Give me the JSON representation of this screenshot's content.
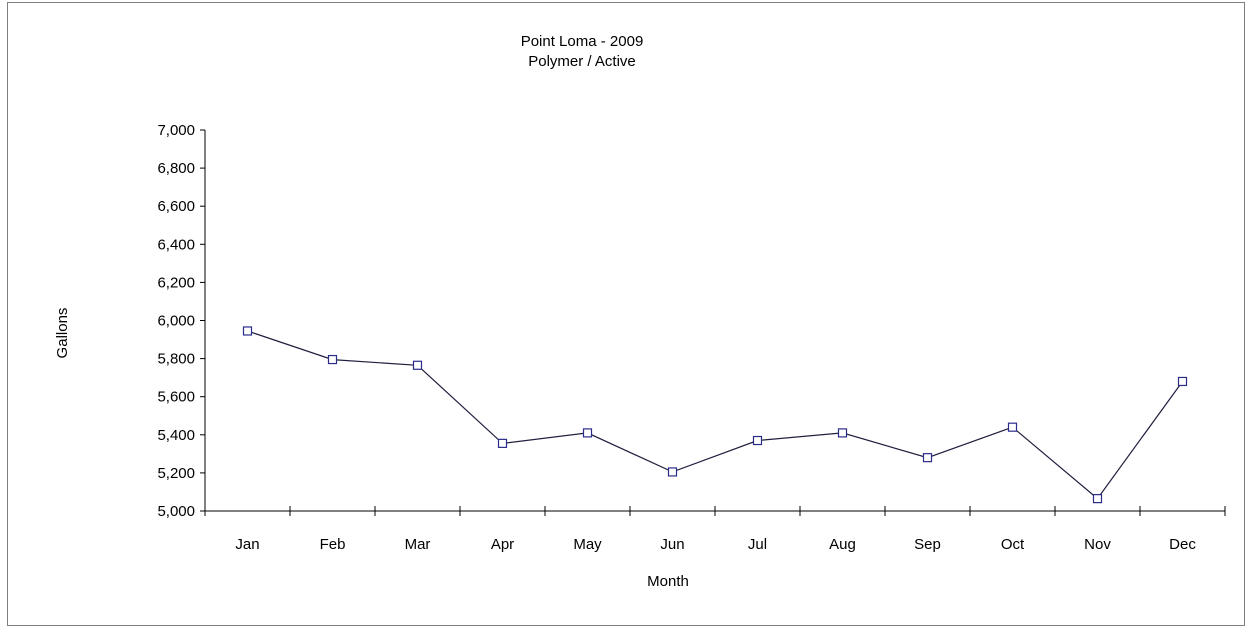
{
  "chart_data": {
    "type": "line",
    "title": "Point Loma - 2009",
    "subtitle": "Polymer / Active",
    "xlabel": "Month",
    "ylabel": "Gallons",
    "categories": [
      "Jan",
      "Feb",
      "Mar",
      "Apr",
      "May",
      "Jun",
      "Jul",
      "Aug",
      "Sep",
      "Oct",
      "Nov",
      "Dec"
    ],
    "values": [
      5945,
      5795,
      5765,
      5355,
      5410,
      5205,
      5370,
      5410,
      5280,
      5440,
      5065,
      5680
    ],
    "ylim": [
      5000,
      7000
    ],
    "yticks": [
      5000,
      5200,
      5400,
      5600,
      5800,
      6000,
      6200,
      6400,
      6600,
      6800,
      7000
    ],
    "ytick_labels": [
      "5,000",
      "5,200",
      "5,400",
      "5,600",
      "5,800",
      "6,000",
      "6,200",
      "6,400",
      "6,600",
      "6,800",
      "7,000"
    ],
    "grid": false,
    "legend": "none",
    "line_color": "#1f1f3f",
    "marker": "square",
    "marker_color": "#2b2b8a"
  }
}
